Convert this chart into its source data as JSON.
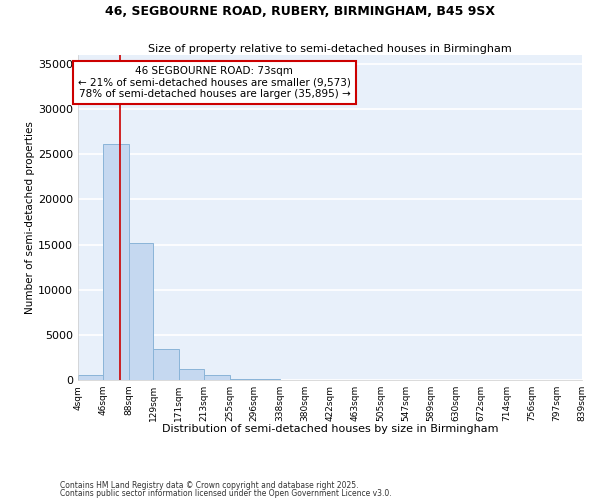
{
  "title_line1": "46, SEGBOURNE ROAD, RUBERY, BIRMINGHAM, B45 9SX",
  "title_line2": "Size of property relative to semi-detached houses in Birmingham",
  "xlabel": "Distribution of semi-detached houses by size in Birmingham",
  "ylabel": "Number of semi-detached properties",
  "bar_color": "#c5d8f0",
  "bar_edge_color": "#8ab4d8",
  "background_color": "#e8f0fa",
  "grid_color": "#ffffff",
  "annotation_text": "46 SEGBOURNE ROAD: 73sqm\n← 21% of semi-detached houses are smaller (9,573)\n78% of semi-detached houses are larger (35,895) →",
  "property_size": 73,
  "red_line_color": "#cc0000",
  "annotation_box_color": "#cc0000",
  "footnote_line1": "Contains HM Land Registry data © Crown copyright and database right 2025.",
  "footnote_line2": "Contains public sector information licensed under the Open Government Licence v3.0.",
  "bin_edges": [
    4,
    46,
    88,
    129,
    171,
    213,
    255,
    296,
    338,
    380,
    422,
    463,
    505,
    547,
    589,
    630,
    672,
    714,
    756,
    797,
    839
  ],
  "bar_heights": [
    500,
    26100,
    15200,
    3400,
    1200,
    500,
    150,
    80,
    50,
    30,
    20,
    15,
    10,
    8,
    6,
    4,
    3,
    2,
    2,
    1
  ],
  "ylim": [
    0,
    36000
  ],
  "yticks": [
    0,
    5000,
    10000,
    15000,
    20000,
    25000,
    30000,
    35000
  ]
}
